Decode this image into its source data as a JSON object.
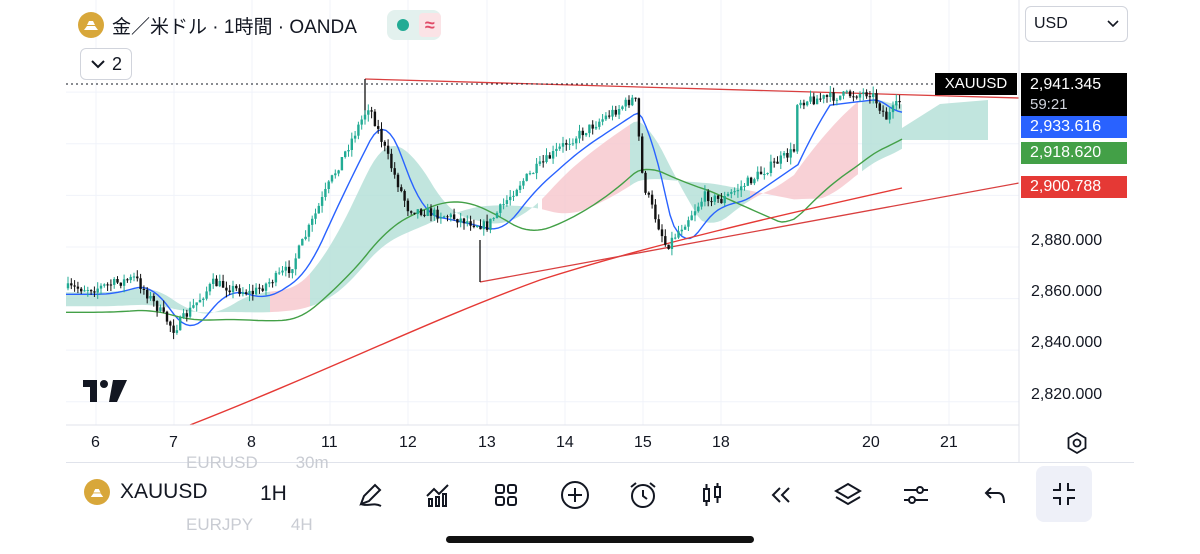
{
  "legend": {
    "title": "金／米ドル · 1時間 · OANDA",
    "indicator_count": "2"
  },
  "currency": "USD",
  "symbol": "XAUUSD",
  "interval": "1H",
  "countdown": "59:21",
  "prices": {
    "last": "2,941.345",
    "blue_ma": "2,933.616",
    "green_ma": "2,918.620",
    "red_ma": "2,900.788"
  },
  "y_axis_labels": [
    "2,880.000",
    "2,860.000",
    "2,840.000",
    "2,820.000"
  ],
  "x_axis_labels": [
    "6",
    "7",
    "8",
    "11",
    "12",
    "13",
    "14",
    "15",
    "18",
    "20",
    "21"
  ],
  "ghost_rows": {
    "top_symbol": "EURUSD",
    "top_interval": "30m",
    "bottom_symbol": "EURJPY",
    "bottom_interval": "4H"
  },
  "colors": {
    "up": "#22ab94",
    "down": "#111111",
    "blue_ma": "#2962ff",
    "green_ma": "#43a047",
    "red_ma": "#e53935",
    "cloud_green": "#b2dfd6",
    "cloud_red": "#f6c6cc",
    "trendline": "#d93f3f"
  },
  "chart_data": {
    "type": "candlestick",
    "symbol": "XAUUSD",
    "interval": "1H",
    "x_axis_ticks": [
      "6",
      "7",
      "8",
      "11",
      "12",
      "13",
      "14",
      "15",
      "18",
      "20",
      "21"
    ],
    "y_axis_ticks": [
      2820,
      2840,
      2860,
      2880,
      2900.788,
      2918.62,
      2933.616,
      2941.345
    ],
    "ylim": [
      2811,
      2952
    ],
    "grid": true,
    "close_path": [
      {
        "x": "6",
        "y": 2864
      },
      {
        "x": "6.5",
        "y": 2868
      },
      {
        "x": "7",
        "y": 2848
      },
      {
        "x": "7.5",
        "y": 2866
      },
      {
        "x": "8",
        "y": 2862
      },
      {
        "x": "8.5",
        "y": 2872
      },
      {
        "x": "11",
        "y": 2905
      },
      {
        "x": "11.5",
        "y": 2935
      },
      {
        "x": "11.8",
        "y": 2910
      },
      {
        "x": "12",
        "y": 2895
      },
      {
        "x": "12.5",
        "y": 2892
      },
      {
        "x": "13",
        "y": 2888
      },
      {
        "x": "13.4",
        "y": 2904
      },
      {
        "x": "14",
        "y": 2920
      },
      {
        "x": "14.5",
        "y": 2930
      },
      {
        "x": "14.9",
        "y": 2938
      },
      {
        "x": "15",
        "y": 2905
      },
      {
        "x": "15.3",
        "y": 2880
      },
      {
        "x": "15.8",
        "y": 2900
      },
      {
        "x": "18",
        "y": 2898
      },
      {
        "x": "18.5",
        "y": 2918
      },
      {
        "x": "19.3",
        "y": 2935
      },
      {
        "x": "20",
        "y": 2940
      },
      {
        "x": "20.2",
        "y": 2930
      },
      {
        "x": "20.5",
        "y": 2941.345
      }
    ],
    "series": [
      {
        "name": "",
        "color": "#2962ff",
        "last": 2933.616
      },
      {
        "name": "",
        "color": "#43a047",
        "last": 2918.62
      },
      {
        "name": "",
        "color": "#e53935",
        "last": 2900.788
      }
    ]
  }
}
